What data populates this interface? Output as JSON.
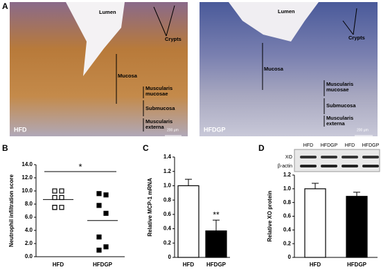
{
  "panel_a": {
    "label": "A",
    "images": [
      {
        "name": "HFD",
        "scale": "200 μm",
        "labels": {
          "lumen": "Lumen",
          "crypts": "Crypts",
          "mucosa": "Mucosa",
          "muscularis_mucosae": [
            "Muscularis",
            "mucosae"
          ],
          "submucosa": "Submucosa",
          "muscularis_externa": [
            "Muscularis",
            "externa"
          ]
        }
      },
      {
        "name": "HFDGP",
        "scale": "200 μm",
        "labels": {
          "lumen": "Lumen",
          "crypts": "Crypts",
          "mucosa": "Mucosa",
          "muscularis_mucosae": [
            "Muscularis",
            "mucosae"
          ],
          "submucosa": "Submucosa",
          "muscularis_externa": [
            "Muscularis",
            "externa"
          ]
        }
      }
    ]
  },
  "chart_data": [
    {
      "type": "scatter",
      "label": "B",
      "y_label": "Neutrophil infiltration score",
      "categories": [
        "HFD",
        "HFDGP"
      ],
      "points": [
        [
          10,
          10,
          9,
          9,
          7.5,
          7.5,
          7.5
        ],
        [
          9.6,
          9.4,
          7.8,
          6.6,
          3,
          1.5,
          1
        ]
      ],
      "means": [
        8.7,
        5.5
      ],
      "colors": [
        "#ffffff",
        "#000000"
      ],
      "annotation": "*",
      "ylim": [
        0,
        14
      ],
      "yticks": [
        {
          "value": 0,
          "label": "0.0"
        },
        {
          "value": 2,
          "label": "2.0"
        },
        {
          "value": 4,
          "label": "4.0"
        },
        {
          "value": 6,
          "label": "6.0"
        },
        {
          "value": 8,
          "label": "8.0"
        },
        {
          "value": 10,
          "label": "10.0"
        },
        {
          "value": 12,
          "label": "12.0"
        },
        {
          "value": 14,
          "label": "14.0"
        }
      ]
    },
    {
      "type": "bar",
      "label": "C",
      "y_label": "Relative MCP-1 mRNA",
      "categories": [
        "HFD",
        "HFDGP"
      ],
      "values": [
        1.0,
        0.37
      ],
      "errors": [
        0.09,
        0.15
      ],
      "colors": [
        "#ffffff",
        "#000000"
      ],
      "annotation": "**",
      "ylim": [
        0,
        1.4
      ],
      "yticks": [
        0,
        0.2,
        0.4,
        0.6,
        0.8,
        {
          "value": 1,
          "label": "1.0"
        },
        1.2,
        1.4
      ]
    },
    {
      "type": "bar",
      "label": "D",
      "y_label": "Relative XO protein",
      "categories": [
        "HFD",
        "HFDGP"
      ],
      "values": [
        1.0,
        0.89
      ],
      "errors": [
        0.08,
        0.06
      ],
      "colors": [
        "#ffffff",
        "#000000"
      ],
      "blot": {
        "lanes": [
          "HFD",
          "HFDGP",
          "HFD",
          "HFDGP"
        ],
        "rows": [
          "XO",
          "β-actin"
        ]
      },
      "ylim": [
        0,
        1.2
      ],
      "yticks": [
        0,
        0.2,
        0.4,
        0.6,
        0.8,
        {
          "value": 1,
          "label": "1.0"
        },
        1.2
      ]
    }
  ]
}
